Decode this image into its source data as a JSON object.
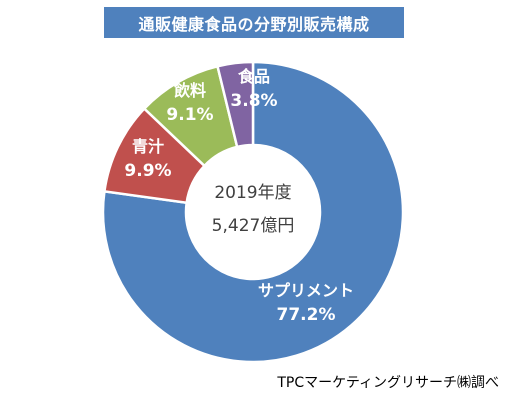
{
  "chart_data": {
    "type": "pie",
    "variant": "donut",
    "title": "通販健康食品の分野別販売構成",
    "center_label_line1": "2019年度",
    "center_label_line2": "5,427億円",
    "slices": [
      {
        "name": "サプリメント",
        "value": 77.2,
        "label": "77.2%",
        "color": "#4f81bd"
      },
      {
        "name": "青汁",
        "value": 9.9,
        "label": "9.9%",
        "color": "#c0504d"
      },
      {
        "name": "飲料",
        "value": 9.1,
        "label": "9.1%",
        "color": "#9bbb59"
      },
      {
        "name": "食品",
        "value": 3.8,
        "label": "3.8%",
        "color": "#8064a2"
      }
    ],
    "start_angle_deg": 0,
    "direction": "clockwise",
    "legend": "none"
  },
  "source_note": "TPCマーケティングリサーチ㈱調べ"
}
